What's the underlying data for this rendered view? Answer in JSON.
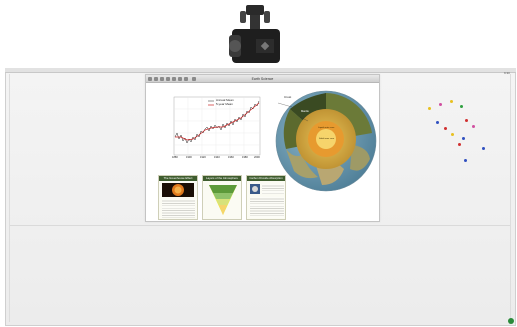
{
  "window": {
    "title": "Earth Science"
  },
  "chart": {
    "legend": [
      "Annual Mean",
      "5-year Mean"
    ],
    "x_ticks": [
      "1880",
      "1900",
      "1920",
      "1940",
      "1960",
      "1980",
      "2000"
    ]
  },
  "globe": {
    "labels": {
      "crust": "Crust",
      "mantle": "Mantle",
      "outer_core": "Liquid outer core",
      "inner_core": "Solid inner core"
    }
  },
  "cards": [
    {
      "title": "The Greenhouse Effect"
    },
    {
      "title": "Layers of the Atmosphere"
    },
    {
      "title": "Carbon Dioxide Absorption"
    }
  ],
  "board": {
    "clock": "9:30",
    "magnet_colors": [
      "#e8c020",
      "#d03030",
      "#3050c0",
      "#d050a0",
      "#30a040"
    ]
  },
  "colors": {
    "titlebar": "#d6d6d6",
    "card_header": "#3f5d2e",
    "annual_series": "#222222",
    "trend_series": "#cc2222"
  }
}
